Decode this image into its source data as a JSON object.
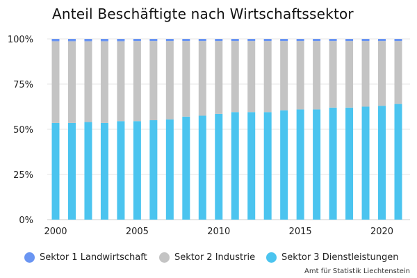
{
  "chart_data": {
    "type": "bar",
    "stacked": true,
    "title": "Anteil Beschäftigte nach Wirtschaftssektor",
    "categories": [
      2000,
      2001,
      2002,
      2003,
      2004,
      2005,
      2006,
      2007,
      2008,
      2009,
      2010,
      2011,
      2012,
      2013,
      2014,
      2015,
      2016,
      2017,
      2018,
      2019,
      2020,
      2021
    ],
    "x_tick_labels": [
      "2000",
      "2005",
      "2010",
      "2015",
      "2020"
    ],
    "y_tick_labels": [
      "0%",
      "25%",
      "50%",
      "75%",
      "100%"
    ],
    "ylim": [
      0,
      100
    ],
    "grid": true,
    "legend_position": "bottom",
    "series": [
      {
        "name": "Sektor 3 Dienstleistungen",
        "color": "#4bc4ef",
        "values": [
          53.5,
          53.5,
          54,
          53.5,
          54.5,
          54.5,
          55,
          55.5,
          57,
          57.5,
          58.5,
          59.5,
          59.5,
          59.5,
          60.5,
          61,
          61,
          62,
          62,
          62.5,
          63,
          64
        ]
      },
      {
        "name": "Sektor 2 Industrie",
        "color": "#c4c4c4",
        "values": [
          45.2,
          45.2,
          44.7,
          45.2,
          44.2,
          44.3,
          43.8,
          43.3,
          41.8,
          41.3,
          40.3,
          39.3,
          39.3,
          39.3,
          38.3,
          37.8,
          37.8,
          36.8,
          36.8,
          36.3,
          35.8,
          34.8
        ]
      },
      {
        "name": "Sektor 1 Landwirtschaft",
        "color": "#6a95f2",
        "values": [
          1.3,
          1.3,
          1.3,
          1.3,
          1.3,
          1.2,
          1.2,
          1.2,
          1.2,
          1.2,
          1.2,
          1.2,
          1.2,
          1.2,
          1.2,
          1.2,
          1.2,
          1.2,
          1.2,
          1.2,
          1.2,
          1.2
        ]
      }
    ],
    "legend_order": [
      "Sektor 1 Landwirtschaft",
      "Sektor 2 Industrie",
      "Sektor 3 Dienstleistungen"
    ]
  },
  "source": "Amt für Statistik Liechtenstein"
}
